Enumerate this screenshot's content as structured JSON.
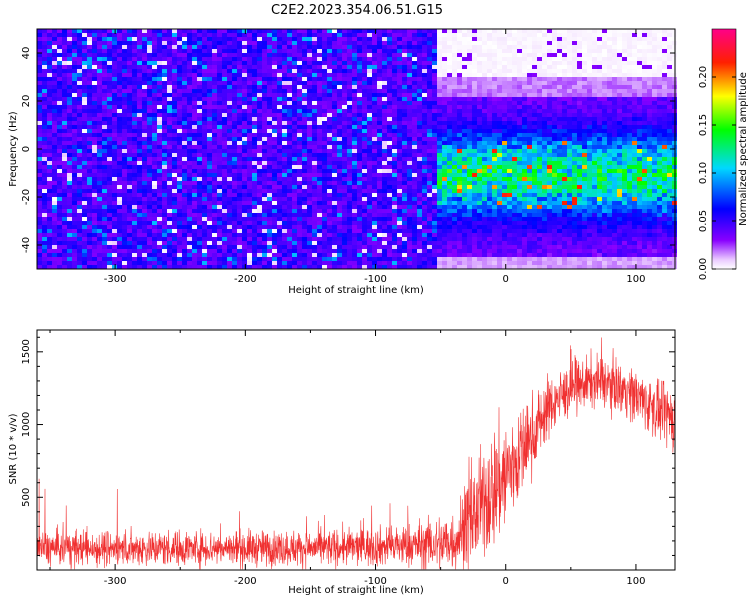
{
  "title": "C2E2.2023.354.06.51.G15",
  "chart_data": [
    {
      "type": "heatmap",
      "xlabel": "Height of straight line (km)",
      "ylabel": "Frequency (Hz)",
      "xlim": [
        -360,
        130
      ],
      "ylim": [
        -50,
        50
      ],
      "xticks": [
        -300,
        -200,
        -100,
        0,
        100
      ],
      "yticks": [
        -40,
        -20,
        0,
        20,
        40
      ],
      "colorbar": {
        "label": "Normalized spectral amplitude",
        "range": [
          0.0,
          0.25
        ],
        "ticks": [
          "0.00",
          "0.05",
          "0.10",
          "0.15",
          "0.20"
        ],
        "colormap": "rainbow (white → violet → blue → cyan → green → yellow → red → magenta)"
      },
      "grid": false,
      "regions": [
        {
          "x_range": [
            -360,
            -55
          ],
          "freq_range": [
            -50,
            50
          ],
          "amplitude_range": [
            0.0,
            0.08
          ]
        },
        {
          "x_range": [
            -55,
            130
          ],
          "freq_range": [
            -35,
            12
          ],
          "amplitude_range": [
            0.05,
            0.22
          ]
        },
        {
          "x_range": [
            -55,
            130
          ],
          "freq_range": [
            30,
            50
          ],
          "amplitude_range": [
            0.0,
            0.01
          ]
        }
      ]
    },
    {
      "type": "line",
      "xlabel": "Height of straight line (km)",
      "ylabel": "SNR (10 * v/v)",
      "xlim": [
        -360,
        130
      ],
      "ylim": [
        0,
        1650
      ],
      "xticks": [
        -300,
        -200,
        -100,
        0,
        100
      ],
      "yticks": [
        500,
        1000,
        1500
      ],
      "grid": false,
      "series_color": "#f03030",
      "envelope": {
        "x": [
          -360,
          -300,
          -250,
          -200,
          -150,
          -100,
          -70,
          -50,
          -40,
          -30,
          -20,
          -10,
          0,
          10,
          20,
          30,
          40,
          50,
          60,
          70,
          80,
          90,
          100,
          110,
          120,
          130
        ],
        "mean": [
          150,
          150,
          150,
          150,
          150,
          160,
          170,
          180,
          200,
          300,
          420,
          550,
          650,
          780,
          920,
          1080,
          1180,
          1240,
          1280,
          1300,
          1280,
          1250,
          1200,
          1140,
          1080,
          1040
        ],
        "spread": [
          110,
          110,
          110,
          110,
          110,
          120,
          140,
          180,
          200,
          260,
          320,
          380,
          380,
          300,
          240,
          200,
          170,
          160,
          160,
          160,
          160,
          160,
          170,
          180,
          190,
          200
        ],
        "peak_max": [
          650,
          600,
          450,
          420,
          380,
          450,
          480,
          500,
          550,
          800,
          1150,
          1400,
          1000,
          1050,
          1250,
          1350,
          1450,
          1550,
          1600,
          1650,
          1560,
          1480,
          1400,
          1350,
          1300,
          1300
        ]
      }
    }
  ]
}
